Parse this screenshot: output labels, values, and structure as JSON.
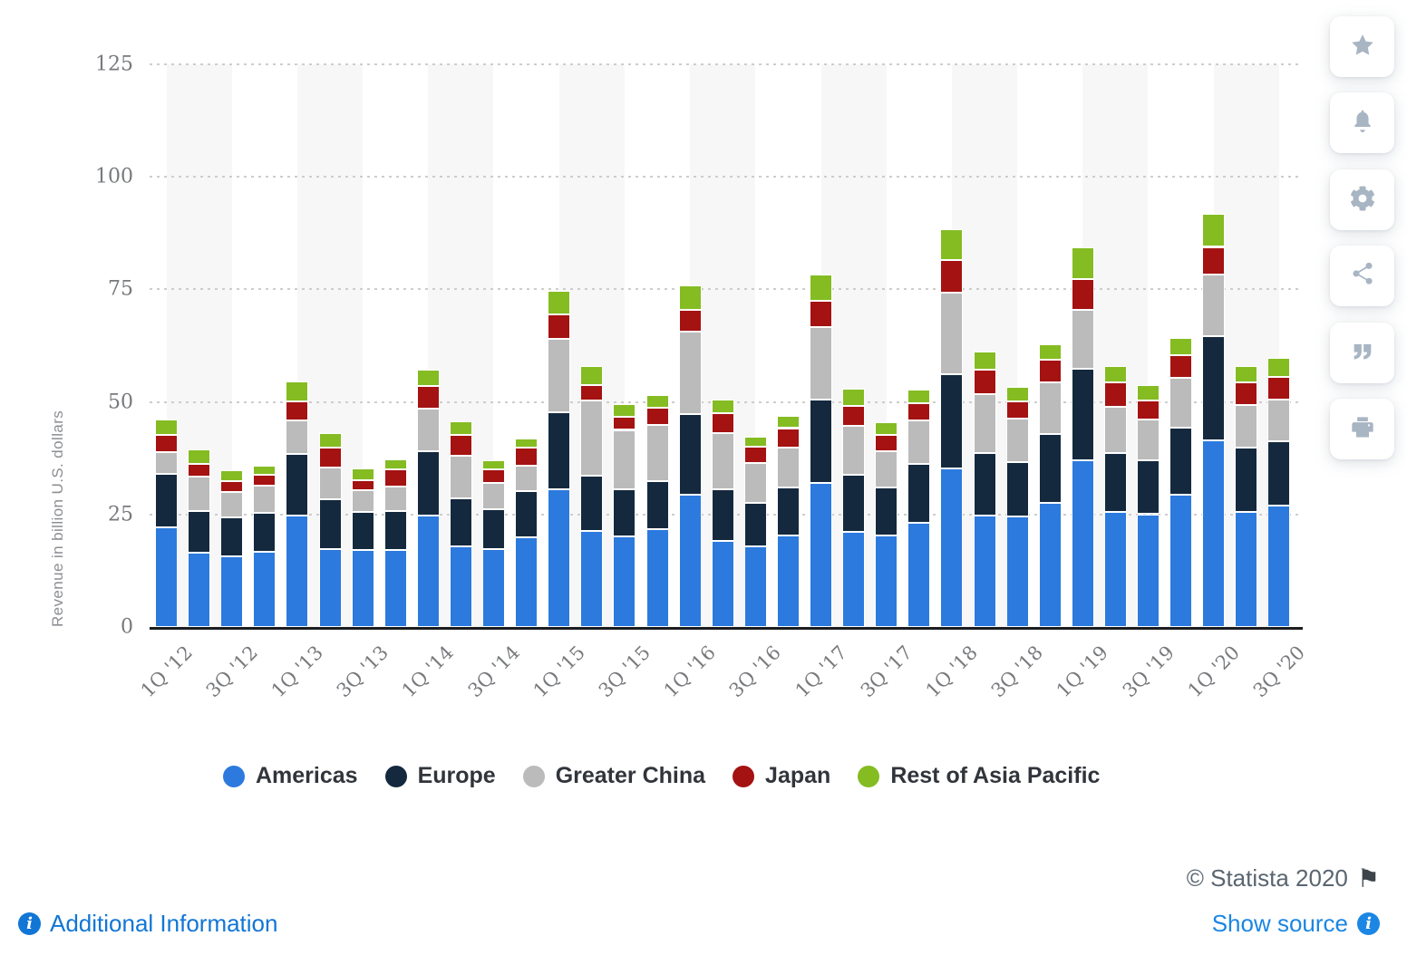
{
  "chart_data": {
    "type": "bar",
    "stacked": true,
    "title": "",
    "ylabel": "Revenue in billion U.S. dollars",
    "xlabel": "",
    "ylim": [
      0,
      125
    ],
    "yticks": [
      0,
      25,
      50,
      75,
      100,
      125
    ],
    "grid": "dotted horizontal lines with alternating vertical plot bands",
    "legend_position": "bottom",
    "n_bars": 35,
    "x_tick_every": 2,
    "x_tick_labels": [
      "1Q '12",
      "3Q '12",
      "1Q '13",
      "3Q '13",
      "1Q '14",
      "3Q '14",
      "1Q '15",
      "3Q '15",
      "1Q '16",
      "3Q '16",
      "1Q '17",
      "3Q '17",
      "1Q '18",
      "3Q '18",
      "1Q '19",
      "3Q '19",
      "1Q '20",
      "3Q '20"
    ],
    "series": [
      {
        "name": "Americas",
        "color": "#2c7ade",
        "values": [
          22.1,
          16.5,
          15.6,
          16.7,
          24.8,
          17.4,
          17.1,
          17.2,
          24.8,
          17.9,
          17.4,
          19.9,
          30.57,
          21.32,
          20.21,
          21.77,
          29.33,
          19.1,
          17.96,
          20.23,
          31.97,
          21.16,
          20.38,
          23.1,
          35.19,
          24.84,
          24.54,
          27.52,
          36.94,
          25.6,
          25.06,
          29.32,
          41.37,
          25.47,
          27.02
        ]
      },
      {
        "name": "Europe",
        "color": "#14293e",
        "values": [
          11.9,
          9.3,
          8.7,
          8.7,
          13.7,
          11.0,
          8.5,
          8.6,
          14.3,
          10.7,
          8.8,
          10.2,
          17.21,
          12.2,
          10.34,
          10.58,
          17.93,
          11.54,
          9.64,
          10.84,
          18.52,
          12.7,
          10.68,
          13.04,
          21.05,
          13.85,
          12.14,
          15.38,
          20.36,
          13.05,
          11.93,
          14.95,
          23.27,
          14.29,
          14.17
        ]
      },
      {
        "name": "Greater China",
        "color": "#bbbbbb",
        "values": [
          4.8,
          7.7,
          5.7,
          6.0,
          7.3,
          7.1,
          4.8,
          5.3,
          9.4,
          9.5,
          5.9,
          5.8,
          16.14,
          16.82,
          13.23,
          12.52,
          18.37,
          12.49,
          8.85,
          8.79,
          16.23,
          10.73,
          8.0,
          9.8,
          17.96,
          13.02,
          9.55,
          11.41,
          13.17,
          10.22,
          9.16,
          11.13,
          13.58,
          9.46,
          9.33
        ]
      },
      {
        "name": "Japan",
        "color": "#a41212",
        "values": [
          3.8,
          2.7,
          2.4,
          2.4,
          4.4,
          4.3,
          2.2,
          4.0,
          5.0,
          4.5,
          3.0,
          3.9,
          5.45,
          3.46,
          2.87,
          3.93,
          4.79,
          4.28,
          3.53,
          4.32,
          5.77,
          4.49,
          3.62,
          3.86,
          7.24,
          5.47,
          3.87,
          5.16,
          6.91,
          5.53,
          4.08,
          5.08,
          6.22,
          5.22,
          4.97
        ]
      },
      {
        "name": "Rest of Asia Pacific",
        "color": "#84bc22",
        "values": [
          3.4,
          3.2,
          2.5,
          2.0,
          4.3,
          3.3,
          2.7,
          2.2,
          3.7,
          3.0,
          2.0,
          2.1,
          5.23,
          4.21,
          2.95,
          2.7,
          5.45,
          3.16,
          2.38,
          2.67,
          5.86,
          3.76,
          2.73,
          2.84,
          6.85,
          3.96,
          3.17,
          3.43,
          6.93,
          3.62,
          3.59,
          3.66,
          7.38,
          3.59,
          4.23
        ]
      }
    ]
  },
  "sidebar": {
    "buttons": [
      "favorite-star",
      "notification-bell",
      "settings-gear",
      "share",
      "citation-quote",
      "print"
    ]
  },
  "footer": {
    "additional_information": "Additional Information",
    "copyright": "© Statista 2020",
    "show_source": "Show source",
    "info_symbol": "i",
    "flag_symbol": "⚑"
  },
  "colors": {
    "link_blue": "#1176d5",
    "source_blue": "#1b86e3",
    "copyright_gray": "#5a6570",
    "tick_gray": "#77797c",
    "icon_gray": "#a8b5c3",
    "plot_band": "#f7f7f8"
  }
}
